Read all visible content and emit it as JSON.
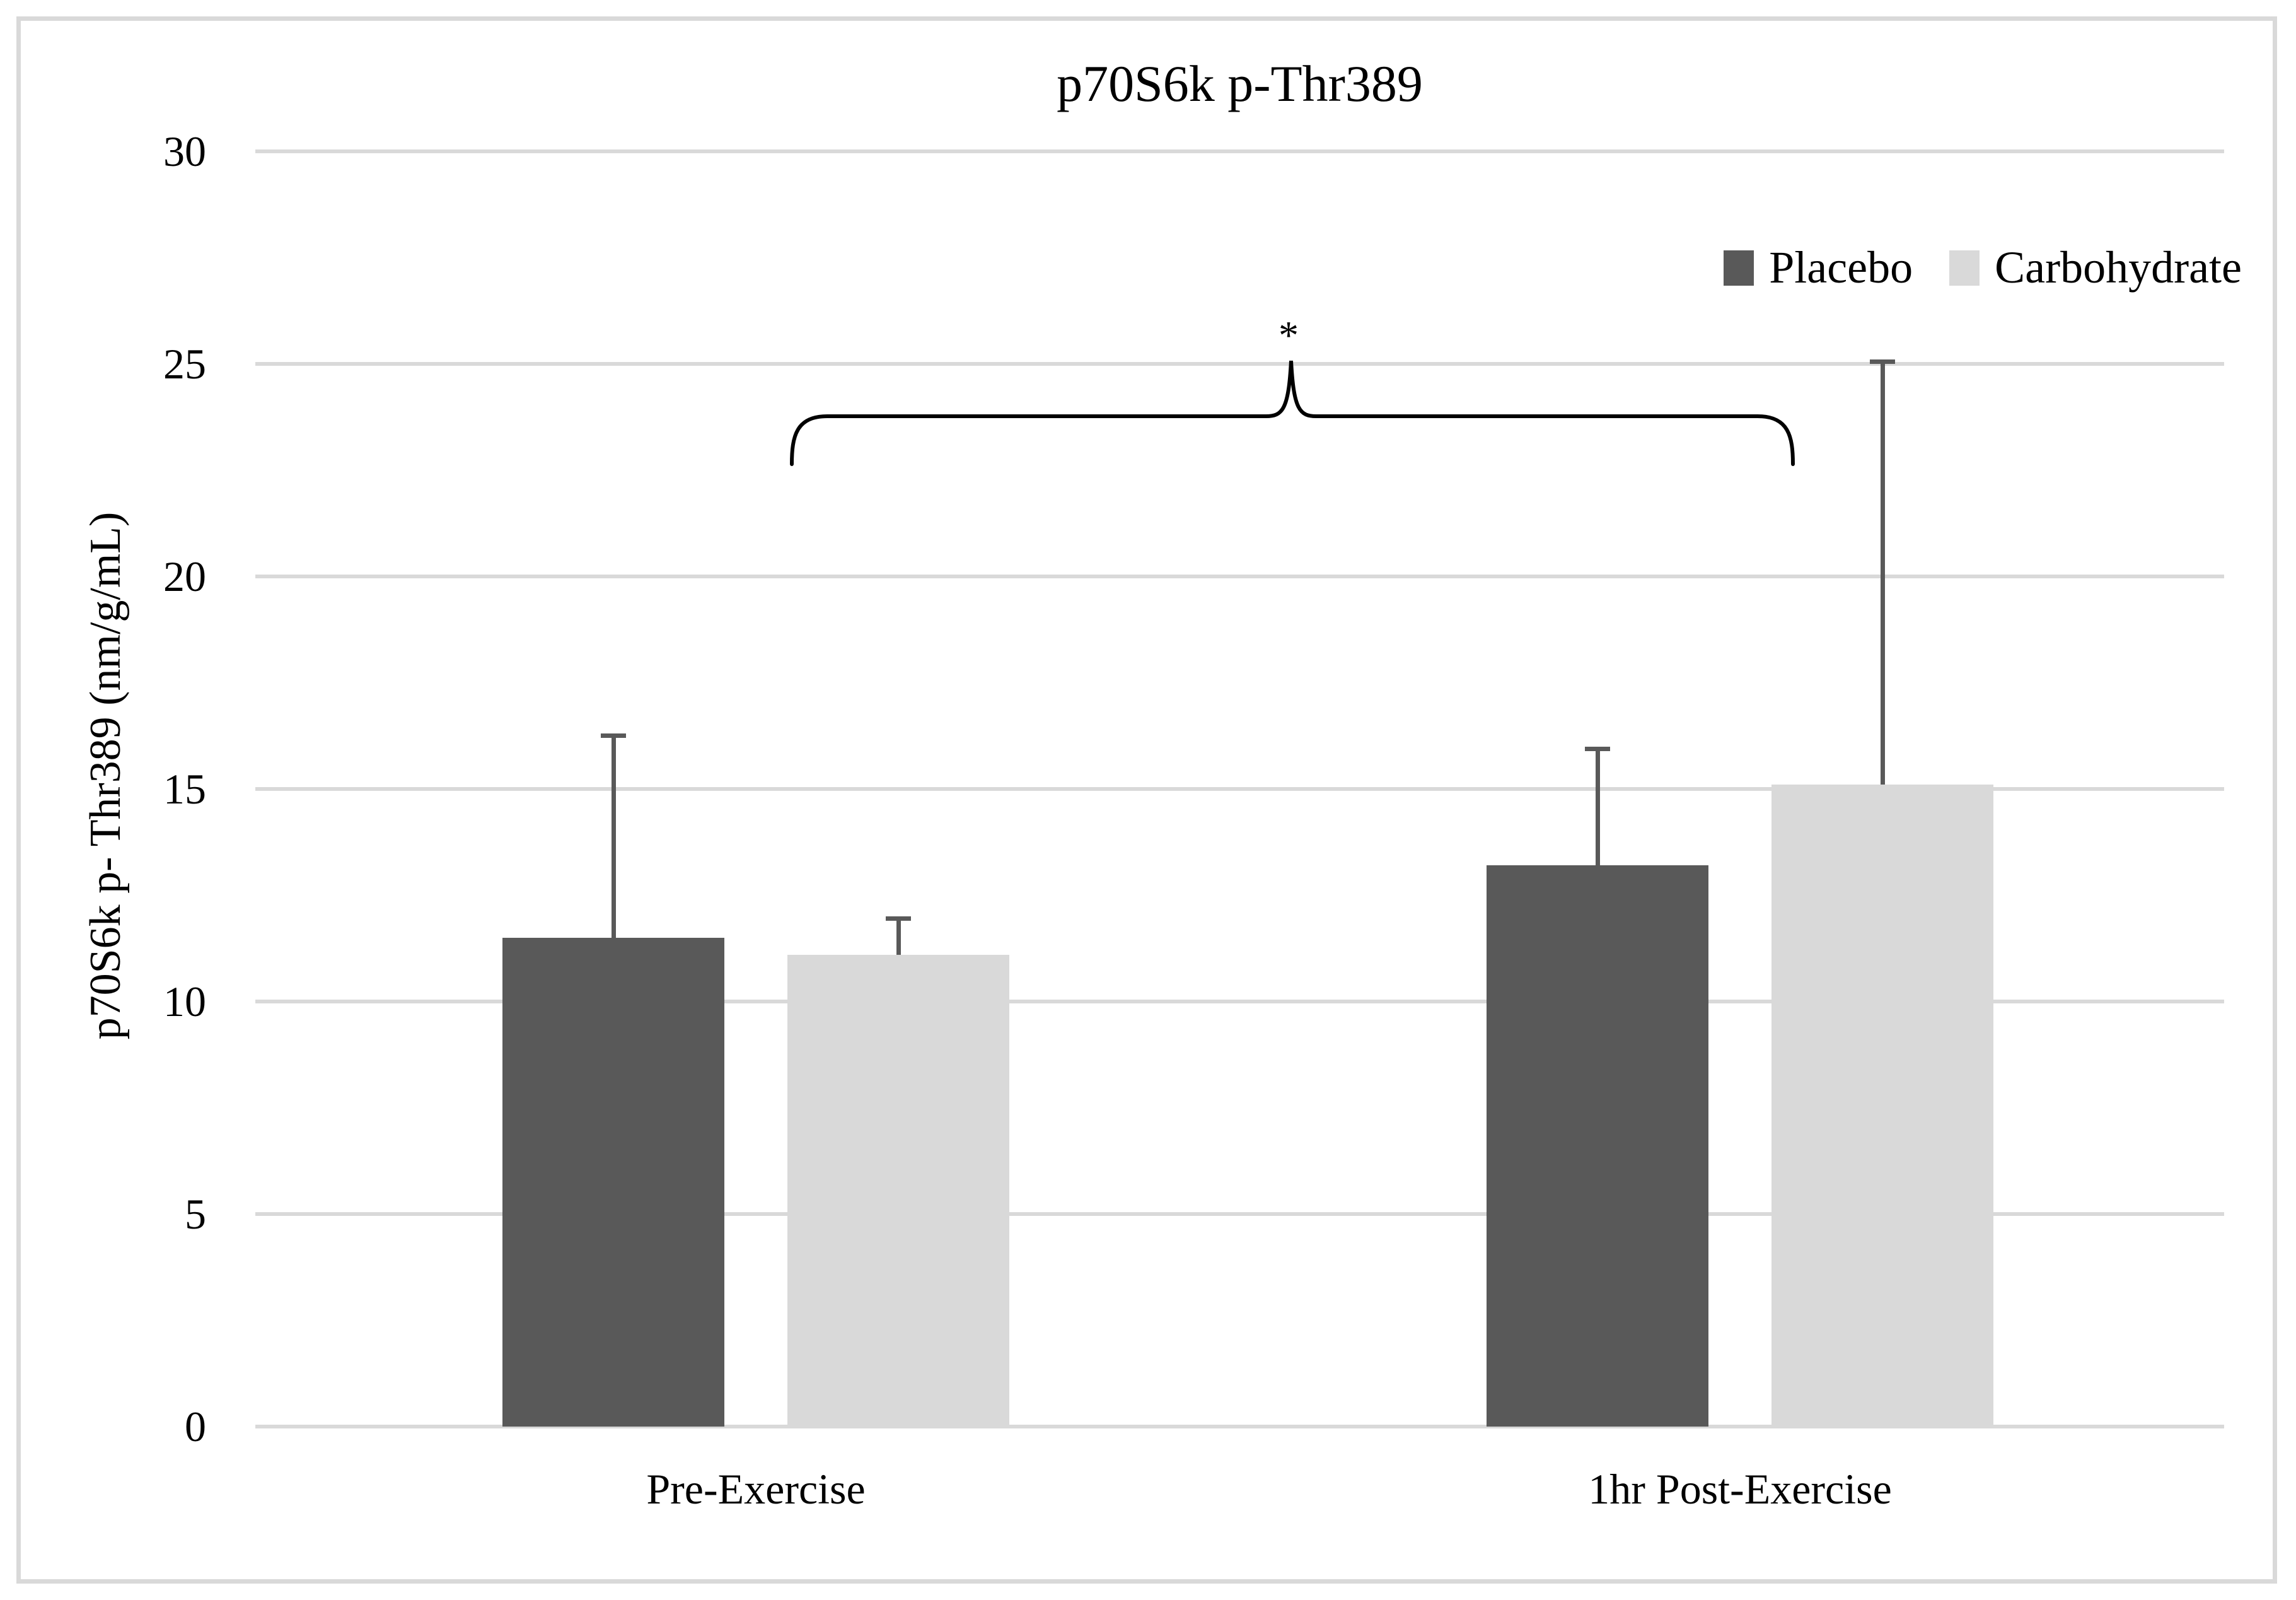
{
  "figure": {
    "background": "#FFFFFF",
    "border_color": "#D9D9D9",
    "text_color": "#000000"
  },
  "chart_data": {
    "type": "bar",
    "title": "p70S6k p-Thr389",
    "ylabel": "p70S6k p- Thr389 (nm/g/mL)",
    "categories": [
      "Pre-Exercise",
      "1hr Post-Exercise"
    ],
    "series": [
      {
        "name": "Placebo",
        "color": "#595959",
        "values": [
          11.5,
          13.2
        ],
        "error_top": [
          16.3,
          16.0
        ]
      },
      {
        "name": "Carbohydrate",
        "color": "#D9D9D9",
        "values": [
          11.1,
          15.1
        ],
        "error_top": [
          12.0,
          25.1
        ]
      }
    ],
    "ylim": [
      0,
      30
    ],
    "yticks": [
      30,
      25,
      20,
      15,
      10,
      5,
      0
    ],
    "grid": true,
    "gridline_color": "#D9D9D9",
    "error_bar_color": "#595959",
    "legend_position": "top-right",
    "annotation": {
      "symbol": "*",
      "spans": [
        "Pre-Exercise",
        "1hr Post-Exercise"
      ]
    }
  }
}
